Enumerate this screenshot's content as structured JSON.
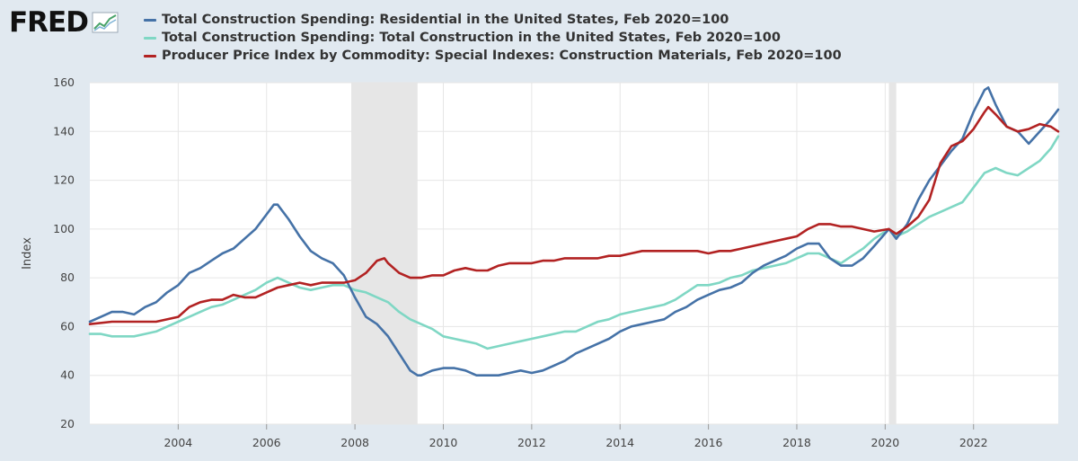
{
  "brand": {
    "logo_text": "FRED",
    "logo_icon": "chart-line-icon"
  },
  "colors": {
    "background": "#e1e9f0",
    "plot_background": "#ffffff",
    "recession": "#e6e6e6",
    "grid": "#e6e6e6"
  },
  "chart_data": {
    "type": "line",
    "title": "",
    "xlabel": "",
    "ylabel": "Index",
    "xlim": [
      "2002-01-01",
      "2023-12-01"
    ],
    "ylim": [
      20,
      160
    ],
    "yticks": [
      20,
      40,
      60,
      80,
      100,
      120,
      140,
      160
    ],
    "xticks": [
      "2004",
      "2006",
      "2008",
      "2010",
      "2012",
      "2014",
      "2016",
      "2018",
      "2020",
      "2022"
    ],
    "grid": true,
    "legend_position": "top",
    "recessions": [
      {
        "start": "2007-12-01",
        "end": "2009-06-01"
      },
      {
        "start": "2020-02-01",
        "end": "2020-04-01"
      }
    ],
    "series": [
      {
        "name": "Total Construction Spending: Residential in the United States, Feb 2020=100",
        "color": "#4572a7",
        "points": [
          [
            "2002-01",
            62
          ],
          [
            "2002-04",
            64
          ],
          [
            "2002-07",
            66
          ],
          [
            "2002-10",
            66
          ],
          [
            "2003-01",
            65
          ],
          [
            "2003-04",
            68
          ],
          [
            "2003-07",
            70
          ],
          [
            "2003-10",
            74
          ],
          [
            "2004-01",
            77
          ],
          [
            "2004-04",
            82
          ],
          [
            "2004-07",
            84
          ],
          [
            "2004-10",
            87
          ],
          [
            "2005-01",
            90
          ],
          [
            "2005-04",
            92
          ],
          [
            "2005-07",
            96
          ],
          [
            "2005-10",
            100
          ],
          [
            "2006-01",
            106
          ],
          [
            "2006-03",
            110
          ],
          [
            "2006-04",
            110
          ],
          [
            "2006-07",
            104
          ],
          [
            "2006-10",
            97
          ],
          [
            "2007-01",
            91
          ],
          [
            "2007-04",
            88
          ],
          [
            "2007-07",
            86
          ],
          [
            "2007-10",
            81
          ],
          [
            "2008-01",
            72
          ],
          [
            "2008-04",
            64
          ],
          [
            "2008-07",
            61
          ],
          [
            "2008-10",
            56
          ],
          [
            "2009-01",
            49
          ],
          [
            "2009-04",
            42
          ],
          [
            "2009-06",
            40
          ],
          [
            "2009-07",
            40
          ],
          [
            "2009-10",
            42
          ],
          [
            "2010-01",
            43
          ],
          [
            "2010-04",
            43
          ],
          [
            "2010-07",
            42
          ],
          [
            "2010-10",
            40
          ],
          [
            "2011-01",
            40
          ],
          [
            "2011-04",
            40
          ],
          [
            "2011-07",
            41
          ],
          [
            "2011-10",
            42
          ],
          [
            "2012-01",
            41
          ],
          [
            "2012-04",
            42
          ],
          [
            "2012-07",
            44
          ],
          [
            "2012-10",
            46
          ],
          [
            "2013-01",
            49
          ],
          [
            "2013-04",
            51
          ],
          [
            "2013-07",
            53
          ],
          [
            "2013-10",
            55
          ],
          [
            "2014-01",
            58
          ],
          [
            "2014-04",
            60
          ],
          [
            "2014-07",
            61
          ],
          [
            "2014-10",
            62
          ],
          [
            "2015-01",
            63
          ],
          [
            "2015-04",
            66
          ],
          [
            "2015-07",
            68
          ],
          [
            "2015-10",
            71
          ],
          [
            "2016-01",
            73
          ],
          [
            "2016-04",
            75
          ],
          [
            "2016-07",
            76
          ],
          [
            "2016-10",
            78
          ],
          [
            "2017-01",
            82
          ],
          [
            "2017-04",
            85
          ],
          [
            "2017-07",
            87
          ],
          [
            "2017-10",
            89
          ],
          [
            "2018-01",
            92
          ],
          [
            "2018-04",
            94
          ],
          [
            "2018-07",
            94
          ],
          [
            "2018-10",
            88
          ],
          [
            "2019-01",
            85
          ],
          [
            "2019-04",
            85
          ],
          [
            "2019-07",
            88
          ],
          [
            "2019-10",
            93
          ],
          [
            "2020-02",
            100
          ],
          [
            "2020-04",
            96
          ],
          [
            "2020-07",
            102
          ],
          [
            "2020-10",
            112
          ],
          [
            "2021-01",
            120
          ],
          [
            "2021-04",
            126
          ],
          [
            "2021-07",
            132
          ],
          [
            "2021-10",
            137
          ],
          [
            "2022-01",
            148
          ],
          [
            "2022-04",
            157
          ],
          [
            "2022-05",
            158
          ],
          [
            "2022-07",
            151
          ],
          [
            "2022-10",
            142
          ],
          [
            "2023-01",
            140
          ],
          [
            "2023-04",
            135
          ],
          [
            "2023-07",
            140
          ],
          [
            "2023-10",
            145
          ],
          [
            "2023-12",
            149
          ]
        ]
      },
      {
        "name": "Total Construction Spending: Total Construction in the United States, Feb 2020=100",
        "color": "#7fd7c4",
        "points": [
          [
            "2002-01",
            57
          ],
          [
            "2002-04",
            57
          ],
          [
            "2002-07",
            56
          ],
          [
            "2002-10",
            56
          ],
          [
            "2003-01",
            56
          ],
          [
            "2003-04",
            57
          ],
          [
            "2003-07",
            58
          ],
          [
            "2003-10",
            60
          ],
          [
            "2004-01",
            62
          ],
          [
            "2004-04",
            64
          ],
          [
            "2004-07",
            66
          ],
          [
            "2004-10",
            68
          ],
          [
            "2005-01",
            69
          ],
          [
            "2005-04",
            71
          ],
          [
            "2005-07",
            73
          ],
          [
            "2005-10",
            75
          ],
          [
            "2006-01",
            78
          ],
          [
            "2006-04",
            80
          ],
          [
            "2006-07",
            78
          ],
          [
            "2006-10",
            76
          ],
          [
            "2007-01",
            75
          ],
          [
            "2007-04",
            76
          ],
          [
            "2007-07",
            77
          ],
          [
            "2007-10",
            77
          ],
          [
            "2008-01",
            75
          ],
          [
            "2008-04",
            74
          ],
          [
            "2008-07",
            72
          ],
          [
            "2008-10",
            70
          ],
          [
            "2009-01",
            66
          ],
          [
            "2009-04",
            63
          ],
          [
            "2009-07",
            61
          ],
          [
            "2009-10",
            59
          ],
          [
            "2010-01",
            56
          ],
          [
            "2010-04",
            55
          ],
          [
            "2010-07",
            54
          ],
          [
            "2010-10",
            53
          ],
          [
            "2011-01",
            51
          ],
          [
            "2011-04",
            52
          ],
          [
            "2011-07",
            53
          ],
          [
            "2011-10",
            54
          ],
          [
            "2012-01",
            55
          ],
          [
            "2012-04",
            56
          ],
          [
            "2012-07",
            57
          ],
          [
            "2012-10",
            58
          ],
          [
            "2013-01",
            58
          ],
          [
            "2013-04",
            60
          ],
          [
            "2013-07",
            62
          ],
          [
            "2013-10",
            63
          ],
          [
            "2014-01",
            65
          ],
          [
            "2014-04",
            66
          ],
          [
            "2014-07",
            67
          ],
          [
            "2014-10",
            68
          ],
          [
            "2015-01",
            69
          ],
          [
            "2015-04",
            71
          ],
          [
            "2015-07",
            74
          ],
          [
            "2015-10",
            77
          ],
          [
            "2016-01",
            77
          ],
          [
            "2016-04",
            78
          ],
          [
            "2016-07",
            80
          ],
          [
            "2016-10",
            81
          ],
          [
            "2017-01",
            83
          ],
          [
            "2017-04",
            84
          ],
          [
            "2017-07",
            85
          ],
          [
            "2017-10",
            86
          ],
          [
            "2018-01",
            88
          ],
          [
            "2018-04",
            90
          ],
          [
            "2018-07",
            90
          ],
          [
            "2018-10",
            88
          ],
          [
            "2019-01",
            86
          ],
          [
            "2019-04",
            89
          ],
          [
            "2019-07",
            92
          ],
          [
            "2019-10",
            96
          ],
          [
            "2020-02",
            100
          ],
          [
            "2020-04",
            97
          ],
          [
            "2020-07",
            99
          ],
          [
            "2020-10",
            102
          ],
          [
            "2021-01",
            105
          ],
          [
            "2021-04",
            107
          ],
          [
            "2021-07",
            109
          ],
          [
            "2021-10",
            111
          ],
          [
            "2022-01",
            117
          ],
          [
            "2022-04",
            123
          ],
          [
            "2022-07",
            125
          ],
          [
            "2022-10",
            123
          ],
          [
            "2023-01",
            122
          ],
          [
            "2023-04",
            125
          ],
          [
            "2023-07",
            128
          ],
          [
            "2023-10",
            133
          ],
          [
            "2023-12",
            138
          ]
        ]
      },
      {
        "name": "Producer Price Index by Commodity: Special Indexes: Construction Materials, Feb 2020=100",
        "color": "#b22222",
        "points": [
          [
            "2002-01",
            61
          ],
          [
            "2002-07",
            62
          ],
          [
            "2003-01",
            62
          ],
          [
            "2003-07",
            62
          ],
          [
            "2004-01",
            64
          ],
          [
            "2004-04",
            68
          ],
          [
            "2004-07",
            70
          ],
          [
            "2004-10",
            71
          ],
          [
            "2005-01",
            71
          ],
          [
            "2005-04",
            73
          ],
          [
            "2005-07",
            72
          ],
          [
            "2005-10",
            72
          ],
          [
            "2006-01",
            74
          ],
          [
            "2006-04",
            76
          ],
          [
            "2006-07",
            77
          ],
          [
            "2006-10",
            78
          ],
          [
            "2007-01",
            77
          ],
          [
            "2007-04",
            78
          ],
          [
            "2007-07",
            78
          ],
          [
            "2007-10",
            78
          ],
          [
            "2008-01",
            79
          ],
          [
            "2008-04",
            82
          ],
          [
            "2008-07",
            87
          ],
          [
            "2008-09",
            88
          ],
          [
            "2008-10",
            86
          ],
          [
            "2009-01",
            82
          ],
          [
            "2009-04",
            80
          ],
          [
            "2009-07",
            80
          ],
          [
            "2009-10",
            81
          ],
          [
            "2010-01",
            81
          ],
          [
            "2010-04",
            83
          ],
          [
            "2010-07",
            84
          ],
          [
            "2010-10",
            83
          ],
          [
            "2011-01",
            83
          ],
          [
            "2011-04",
            85
          ],
          [
            "2011-07",
            86
          ],
          [
            "2011-10",
            86
          ],
          [
            "2012-01",
            86
          ],
          [
            "2012-04",
            87
          ],
          [
            "2012-07",
            87
          ],
          [
            "2012-10",
            88
          ],
          [
            "2013-01",
            88
          ],
          [
            "2013-04",
            88
          ],
          [
            "2013-07",
            88
          ],
          [
            "2013-10",
            89
          ],
          [
            "2014-01",
            89
          ],
          [
            "2014-04",
            90
          ],
          [
            "2014-07",
            91
          ],
          [
            "2014-10",
            91
          ],
          [
            "2015-01",
            91
          ],
          [
            "2015-04",
            91
          ],
          [
            "2015-07",
            91
          ],
          [
            "2015-10",
            91
          ],
          [
            "2016-01",
            90
          ],
          [
            "2016-04",
            91
          ],
          [
            "2016-07",
            91
          ],
          [
            "2016-10",
            92
          ],
          [
            "2017-01",
            93
          ],
          [
            "2017-04",
            94
          ],
          [
            "2017-07",
            95
          ],
          [
            "2017-10",
            96
          ],
          [
            "2018-01",
            97
          ],
          [
            "2018-04",
            100
          ],
          [
            "2018-07",
            102
          ],
          [
            "2018-10",
            102
          ],
          [
            "2019-01",
            101
          ],
          [
            "2019-04",
            101
          ],
          [
            "2019-07",
            100
          ],
          [
            "2019-10",
            99
          ],
          [
            "2020-02",
            100
          ],
          [
            "2020-04",
            98
          ],
          [
            "2020-07",
            101
          ],
          [
            "2020-10",
            105
          ],
          [
            "2021-01",
            112
          ],
          [
            "2021-04",
            127
          ],
          [
            "2021-07",
            134
          ],
          [
            "2021-10",
            136
          ],
          [
            "2022-01",
            141
          ],
          [
            "2022-04",
            148
          ],
          [
            "2022-05",
            150
          ],
          [
            "2022-07",
            147
          ],
          [
            "2022-10",
            142
          ],
          [
            "2023-01",
            140
          ],
          [
            "2023-04",
            141
          ],
          [
            "2023-07",
            143
          ],
          [
            "2023-10",
            142
          ],
          [
            "2023-12",
            140
          ]
        ]
      }
    ]
  }
}
